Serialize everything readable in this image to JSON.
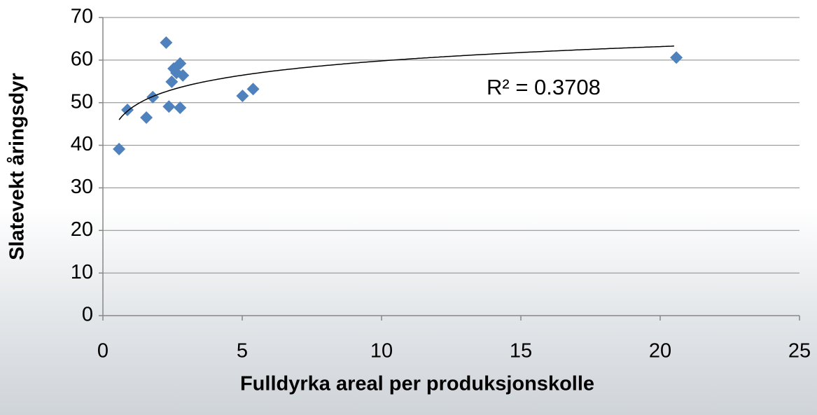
{
  "chart_data": {
    "type": "scatter",
    "x_label": "Fulldyrka areal per produksjonskolle",
    "y_label": "Slatevekt åringsdyr",
    "series": [
      {
        "name": "Slatevekt",
        "color": "#4f81bd",
        "x": [
          0.58,
          0.88,
          1.56,
          1.79,
          2.27,
          2.37,
          2.47,
          2.54,
          2.64,
          2.77,
          2.87,
          2.77,
          5.01,
          5.39,
          20.58
        ],
        "values": [
          39.1,
          48.3,
          46.5,
          51.3,
          64.1,
          49.1,
          54.9,
          58.0,
          57.0,
          59.2,
          56.4,
          48.8,
          51.6,
          53.2,
          60.6
        ]
      }
    ],
    "trendline": {
      "kind": "log",
      "coefficients": [
        4.85,
        48.64
      ],
      "xrange": [
        0.58,
        20.5
      ],
      "label": "R² = 0.3708",
      "color": "#000000"
    },
    "xlim": [
      0,
      25
    ],
    "xticks": [
      0,
      5,
      10,
      15,
      20,
      25
    ],
    "ylim": [
      0,
      70
    ],
    "yticks": [
      0,
      10,
      20,
      30,
      40,
      50,
      60,
      70
    ],
    "grid": true
  }
}
